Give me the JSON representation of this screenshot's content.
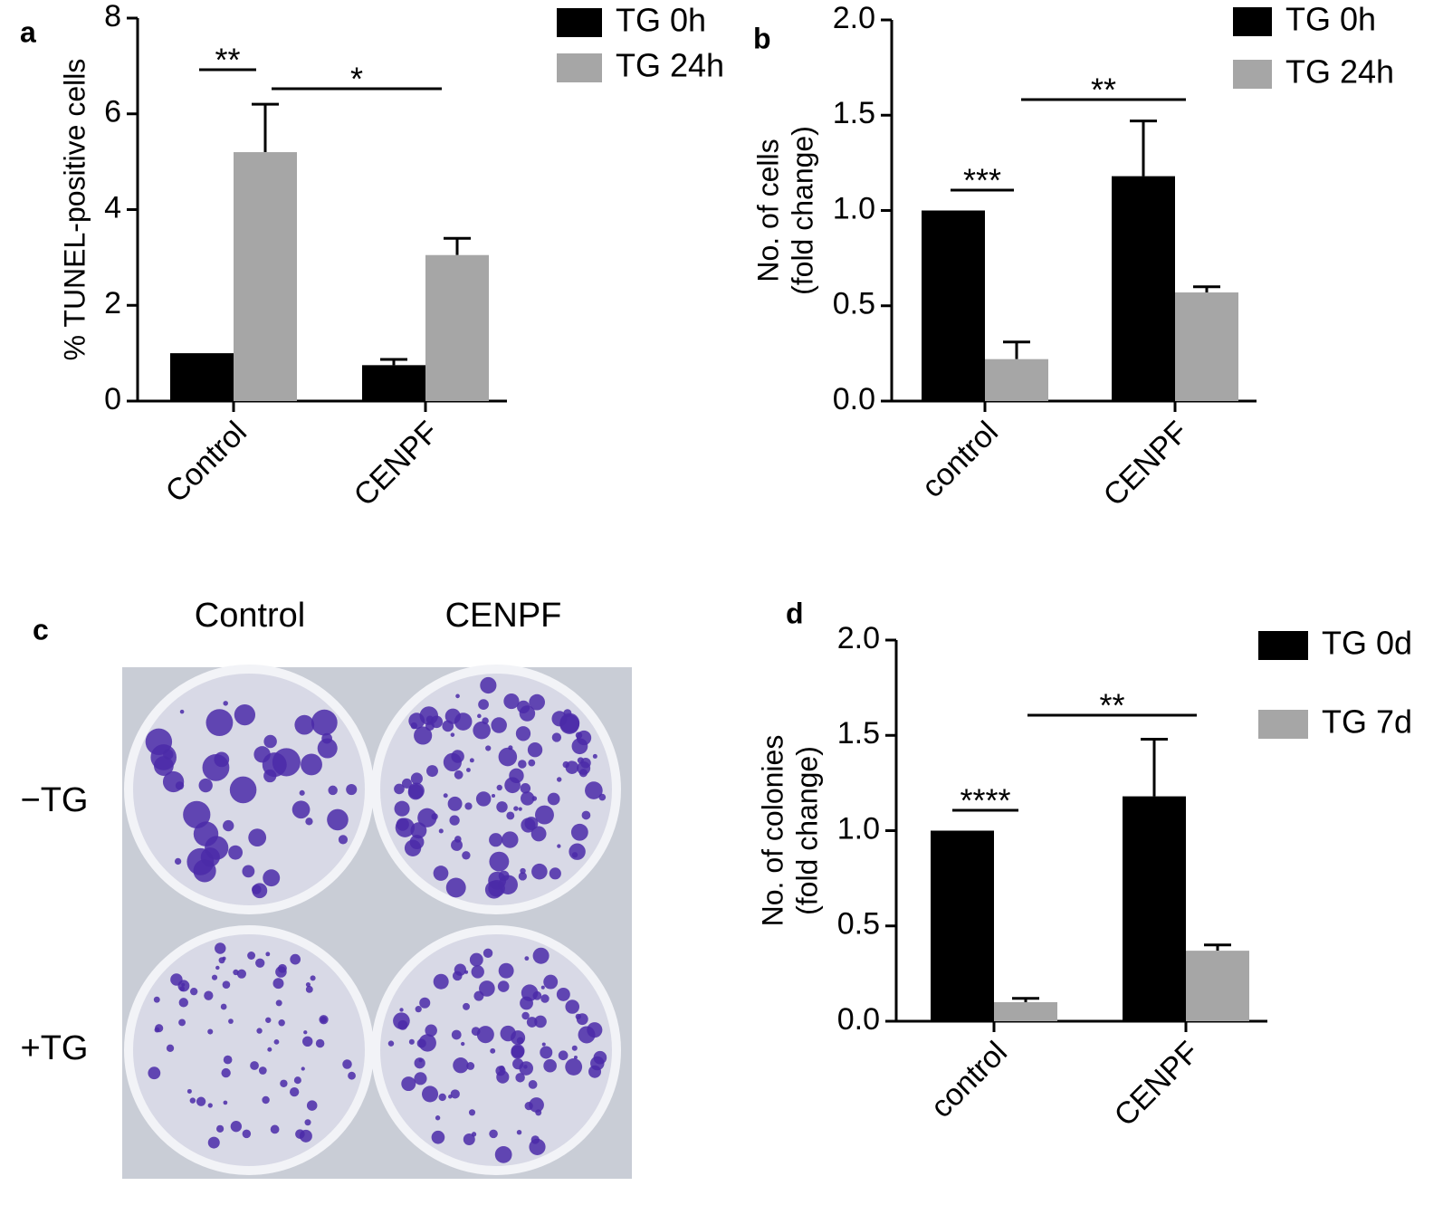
{
  "chart_data": [
    {
      "type": "bar",
      "panel_label": "a",
      "ylabel": [
        "% TUNEL-positive cells"
      ],
      "categories": [
        "Control",
        "CENPF"
      ],
      "series": [
        {
          "name": "TG 0h",
          "color": "#000000",
          "values": [
            1.0,
            0.75
          ],
          "errors": [
            null,
            0.12
          ]
        },
        {
          "name": "TG 24h",
          "color": "#a6a6a6",
          "values": [
            5.2,
            3.05
          ],
          "errors": [
            1.0,
            0.35
          ]
        }
      ],
      "ylim": [
        0,
        8
      ],
      "yticks": [
        0,
        2,
        4,
        6,
        8
      ],
      "legend": "upper right",
      "annotations": [
        "**",
        "*"
      ]
    },
    {
      "type": "bar",
      "panel_label": "b",
      "ylabel": [
        "No. of cells",
        "(fold change)"
      ],
      "categories": [
        "control",
        "CENPF"
      ],
      "series": [
        {
          "name": "TG 0h",
          "color": "#000000",
          "values": [
            1.0,
            1.18
          ],
          "errors": [
            null,
            0.29
          ]
        },
        {
          "name": "TG 24h",
          "color": "#a6a6a6",
          "values": [
            0.22,
            0.57
          ],
          "errors": [
            0.09,
            0.03
          ]
        }
      ],
      "ylim": [
        0,
        2
      ],
      "yticks": [
        {
          "value": 0,
          "label": "0.0"
        },
        0.5,
        {
          "value": 1,
          "label": "1.0"
        },
        1.5,
        {
          "value": 2,
          "label": "2.0"
        }
      ],
      "legend": "upper right",
      "annotations": [
        "***",
        "**"
      ]
    },
    {
      "type": "bar",
      "panel_label": "d",
      "ylabel": [
        "No. of colonies",
        "(fold change)"
      ],
      "categories": [
        "control",
        "CENPF"
      ],
      "series": [
        {
          "name": "TG 0d",
          "color": "#000000",
          "values": [
            1.0,
            1.18
          ],
          "errors": [
            null,
            0.3
          ]
        },
        {
          "name": "TG 7d",
          "color": "#a6a6a6",
          "values": [
            0.1,
            0.37
          ],
          "errors": [
            0.02,
            0.03
          ]
        }
      ],
      "ylim": [
        0,
        2
      ],
      "yticks": [
        {
          "value": 0,
          "label": "0.0"
        },
        0.5,
        {
          "value": 1,
          "label": "1.0"
        },
        1.5,
        {
          "value": 2,
          "label": "2.0"
        }
      ],
      "legend": "upper right",
      "annotations": [
        "****",
        "**"
      ]
    }
  ],
  "photo_panel": {
    "panel_label": "c",
    "columns": [
      "Control",
      "CENPF"
    ],
    "rows": [
      "−TG",
      "+TG"
    ]
  }
}
